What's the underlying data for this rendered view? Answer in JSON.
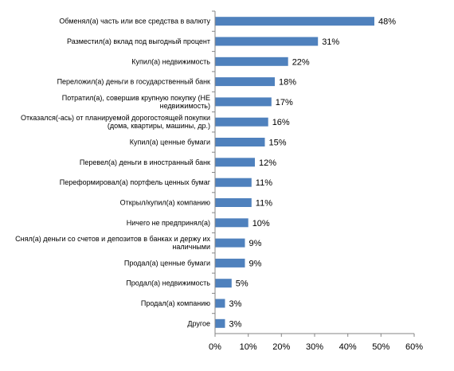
{
  "chart_data": {
    "type": "bar",
    "orientation": "horizontal",
    "title": "",
    "xlabel": "",
    "ylabel": "",
    "xlim": [
      0,
      60
    ],
    "x_ticks": [
      "0%",
      "10%",
      "20%",
      "30%",
      "40%",
      "50%",
      "60%"
    ],
    "grid": false,
    "legend": "none",
    "bar_color": "#4F81BD",
    "axis_color": "#868686",
    "categories": [
      [
        "Обменял(а) часть или все средства в валюту"
      ],
      [
        "Разместил(а) вклад под выгодный процент"
      ],
      [
        "Купил(а) недвижимость"
      ],
      [
        "Переложил(а) деньги в государственный банк"
      ],
      [
        "Потратил(а), совершив крупную покупку (НЕ",
        "недвижимость)"
      ],
      [
        "Отказался(-ась) от планируемой дорогостоящей покупки",
        "(дома, квартиры, машины, др.)"
      ],
      [
        "Купил(а) ценные бумаги"
      ],
      [
        "Перевел(а) деньги в иностранный банк"
      ],
      [
        "Переформировал(а) портфель ценных бумаг"
      ],
      [
        "Открыл/купил(а) компанию"
      ],
      [
        "Ничего не предпринял(а)"
      ],
      [
        "Снял(а) деньги со счетов и депозитов в банках и держу их",
        "наличными"
      ],
      [
        "Продал(а) ценные бумаги"
      ],
      [
        "Продал(а) недвижимость"
      ],
      [
        "Продал(а) компанию"
      ],
      [
        "Другое"
      ]
    ],
    "values": [
      48,
      31,
      22,
      18,
      17,
      16,
      15,
      12,
      11,
      11,
      10,
      9,
      9,
      5,
      3,
      3
    ],
    "value_labels": [
      "48%",
      "31%",
      "22%",
      "18%",
      "17%",
      "16%",
      "15%",
      "12%",
      "11%",
      "11%",
      "10%",
      "9%",
      "9%",
      "5%",
      "3%",
      "3%"
    ]
  }
}
